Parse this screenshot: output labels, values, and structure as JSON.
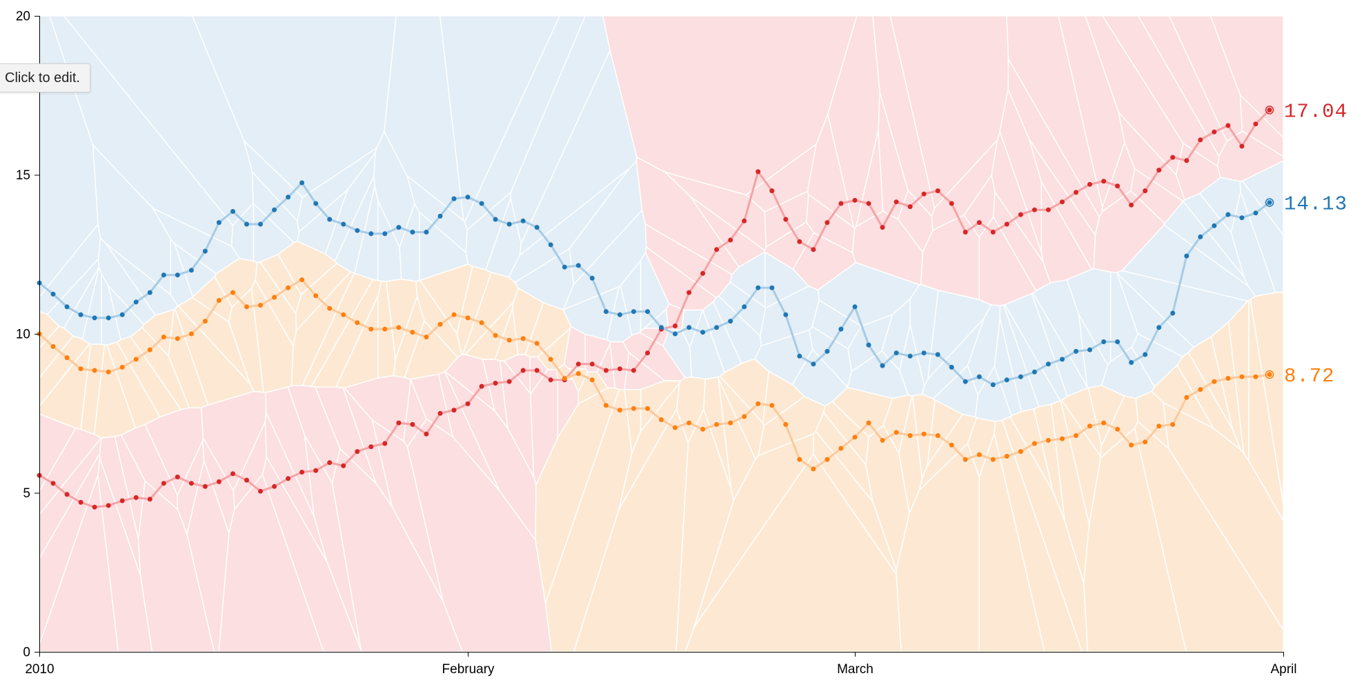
{
  "tooltip": {
    "text": "Click to edit."
  },
  "chart_data": {
    "type": "line",
    "x_start": "2010-01-01",
    "x_end": "2010-04-01",
    "x_tick_labels": [
      "2010",
      "February",
      "March",
      "April"
    ],
    "x_tick_dates": [
      "2010-01-01",
      "2010-02-01",
      "2010-03-01",
      "2010-04-01"
    ],
    "ylim": [
      0,
      20
    ],
    "y_ticks": [
      0,
      5,
      10,
      15,
      20
    ],
    "voronoi_overlay": true,
    "series": [
      {
        "color": "#d62728",
        "line_color": "#f4a3a5",
        "region_color": "#fcdfe0",
        "end_label": "17.04",
        "values": [
          5.55,
          5.3,
          4.95,
          4.7,
          4.55,
          4.6,
          4.75,
          4.85,
          4.8,
          5.3,
          5.5,
          5.3,
          5.2,
          5.35,
          5.6,
          5.4,
          5.05,
          5.2,
          5.45,
          5.65,
          5.7,
          5.95,
          5.85,
          6.3,
          6.45,
          6.55,
          7.2,
          7.15,
          6.85,
          7.5,
          7.6,
          7.8,
          8.35,
          8.45,
          8.5,
          8.85,
          8.85,
          8.55,
          8.55,
          9.05,
          9.05,
          8.85,
          8.9,
          8.85,
          9.4,
          10.15,
          10.25,
          11.3,
          11.9,
          12.65,
          12.95,
          13.55,
          15.1,
          14.5,
          13.6,
          12.9,
          12.65,
          13.5,
          14.1,
          14.2,
          14.1,
          13.35,
          14.15,
          14.0,
          14.4,
          14.5,
          14.1,
          13.2,
          13.5,
          13.2,
          13.45,
          13.75,
          13.9,
          13.9,
          14.15,
          14.45,
          14.7,
          14.8,
          14.65,
          14.05,
          14.5,
          15.15,
          15.55,
          15.45,
          16.1,
          16.35,
          16.55,
          15.9,
          16.6,
          17.04
        ]
      },
      {
        "color": "#1f77b4",
        "line_color": "#a6cbe5",
        "region_color": "#e3eef6",
        "end_label": "14.13",
        "values": [
          11.6,
          11.25,
          10.85,
          10.6,
          10.5,
          10.5,
          10.6,
          11.0,
          11.3,
          11.85,
          11.85,
          12.0,
          12.6,
          13.5,
          13.85,
          13.45,
          13.45,
          13.9,
          14.3,
          14.75,
          14.1,
          13.6,
          13.45,
          13.25,
          13.15,
          13.15,
          13.35,
          13.2,
          13.2,
          13.7,
          14.25,
          14.3,
          14.1,
          13.6,
          13.45,
          13.55,
          13.35,
          12.8,
          12.1,
          12.15,
          11.75,
          10.7,
          10.6,
          10.7,
          10.7,
          10.2,
          10.0,
          10.2,
          10.05,
          10.2,
          10.4,
          10.85,
          11.45,
          11.45,
          10.6,
          9.3,
          9.05,
          9.45,
          10.15,
          10.85,
          9.65,
          9.0,
          9.4,
          9.3,
          9.4,
          9.35,
          8.95,
          8.5,
          8.65,
          8.4,
          8.55,
          8.65,
          8.8,
          9.05,
          9.2,
          9.45,
          9.5,
          9.75,
          9.75,
          9.1,
          9.35,
          10.2,
          10.65,
          12.45,
          13.05,
          13.4,
          13.75,
          13.65,
          13.8,
          14.13
        ]
      },
      {
        "color": "#ff7f0e",
        "line_color": "#fcc99b",
        "region_color": "#fde9d3",
        "end_label": "8.72",
        "values": [
          10.0,
          9.6,
          9.25,
          8.9,
          8.85,
          8.8,
          8.95,
          9.2,
          9.5,
          9.9,
          9.85,
          10.0,
          10.4,
          11.05,
          11.3,
          10.85,
          10.9,
          11.15,
          11.45,
          11.7,
          11.2,
          10.8,
          10.6,
          10.35,
          10.15,
          10.15,
          10.2,
          10.05,
          9.9,
          10.3,
          10.6,
          10.5,
          10.35,
          9.95,
          9.8,
          9.85,
          9.7,
          9.2,
          8.6,
          8.75,
          8.55,
          7.75,
          7.6,
          7.65,
          7.65,
          7.3,
          7.05,
          7.2,
          7.0,
          7.15,
          7.2,
          7.4,
          7.8,
          7.75,
          7.15,
          6.05,
          5.75,
          6.05,
          6.4,
          6.75,
          7.2,
          6.65,
          6.9,
          6.8,
          6.85,
          6.8,
          6.5,
          6.05,
          6.2,
          6.05,
          6.15,
          6.3,
          6.55,
          6.65,
          6.7,
          6.8,
          7.1,
          7.2,
          7.0,
          6.5,
          6.6,
          7.1,
          7.15,
          8.0,
          8.25,
          8.5,
          8.6,
          8.65,
          8.65,
          8.72
        ]
      }
    ]
  }
}
